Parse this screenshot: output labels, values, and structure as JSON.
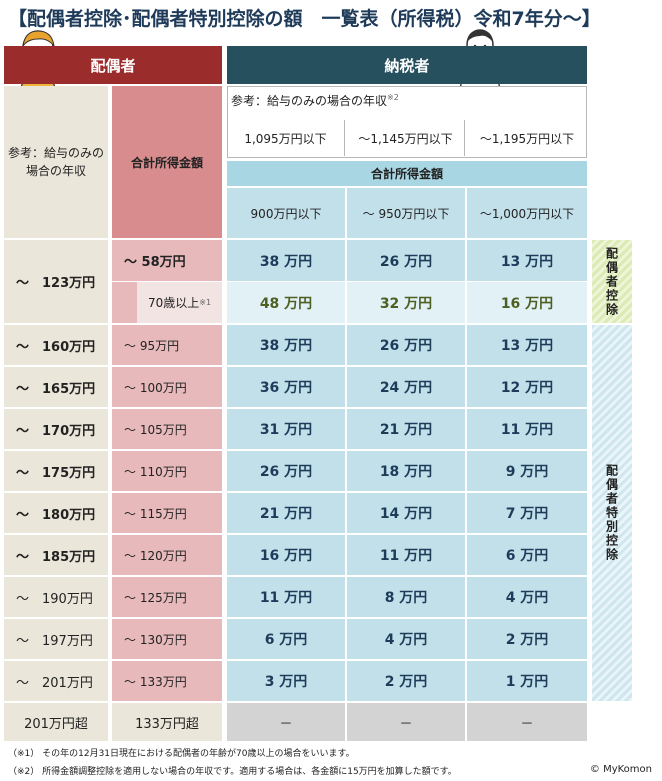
{
  "title": "【配偶者控除･配偶者特別控除の額　一覧表（所得税）令和7年分～】",
  "headers": {
    "spouse": "配偶者",
    "taxpayer": "納税者"
  },
  "spouse_cols": {
    "ref_income": "参考：給与のみの場合の年収",
    "total_income": "合計所得金額"
  },
  "taxpayer_ref": {
    "label": "参考：給与のみの場合の年収",
    "label_note": "※2",
    "cols": [
      "1,095万円以下",
      "～1,145万円以下",
      "～1,195万円以下"
    ]
  },
  "taxpayer_total": {
    "label": "合計所得金額",
    "cols": [
      "900万円以下",
      "～ 950万円以下",
      "～1,000万円以下"
    ]
  },
  "rows": [
    {
      "salary": "～　123万円",
      "income": "～ 58万円",
      "values": [
        "38 万円",
        "26 万円",
        "13 万円"
      ]
    },
    {
      "salary": "",
      "income": "70歳以上",
      "income_note": "※1",
      "values": [
        "48 万円",
        "32 万円",
        "16 万円"
      ]
    },
    {
      "salary": "～　160万円",
      "income": "～ 95万円",
      "values": [
        "38 万円",
        "26 万円",
        "13 万円"
      ]
    },
    {
      "salary": "～　165万円",
      "income": "～ 100万円",
      "values": [
        "36 万円",
        "24 万円",
        "12 万円"
      ]
    },
    {
      "salary": "～　170万円",
      "income": "～ 105万円",
      "values": [
        "31 万円",
        "21 万円",
        "11 万円"
      ]
    },
    {
      "salary": "～　175万円",
      "income": "～ 110万円",
      "values": [
        "26 万円",
        "18 万円",
        "9 万円"
      ]
    },
    {
      "salary": "～　180万円",
      "income": "～ 115万円",
      "values": [
        "21 万円",
        "14 万円",
        "7 万円"
      ]
    },
    {
      "salary": "～　185万円",
      "income": "～ 120万円",
      "values": [
        "16 万円",
        "11 万円",
        "6 万円"
      ]
    },
    {
      "salary": "～　190万円",
      "income": "～ 125万円",
      "values": [
        "11 万円",
        "8 万円",
        "4 万円"
      ]
    },
    {
      "salary": "～　197万円",
      "income": "～ 130万円",
      "values": [
        "6 万円",
        "4 万円",
        "2 万円"
      ]
    },
    {
      "salary": "～　201万円",
      "income": "～ 133万円",
      "values": [
        "3 万円",
        "2 万円",
        "1 万円"
      ]
    },
    {
      "salary": "201万円超",
      "income": "133万円超",
      "values": [
        "－",
        "－",
        "－"
      ]
    }
  ],
  "side_labels": {
    "spouse_deduction": "配偶者控除",
    "special_deduction": "配偶者特別控除"
  },
  "notes": [
    "（※1） その年の12月31日現在における配偶者の年齢が70歳以上の場合をいいます。",
    "（※2） 所得金額調整控除を適用しない場合の年収です。適用する場合は、各金額に15万円を加算した額です。"
  ],
  "credit": "© MyKomon",
  "colors": {
    "spouse_header": "#9b2c2c",
    "taxpayer_header": "#26505e",
    "value_text": "#1f3b5a",
    "senior_value_text": "#4d5f22"
  }
}
